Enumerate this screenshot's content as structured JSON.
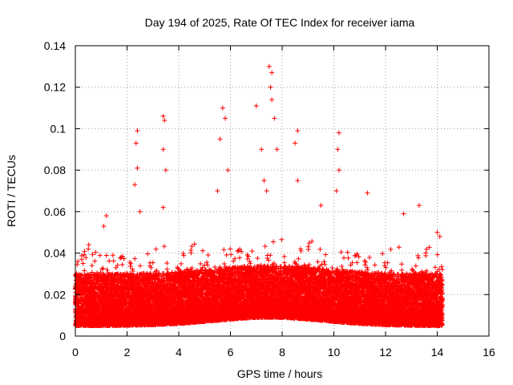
{
  "chart_data": {
    "type": "scatter",
    "title": "Day 194 of 2025, Rate Of TEC Index for receiver iama",
    "xlabel": "GPS time / hours",
    "ylabel": "ROTI / TECUs",
    "xlim": [
      0,
      16
    ],
    "ylim": [
      0,
      0.14
    ],
    "x_ticks": [
      0,
      2,
      4,
      6,
      8,
      10,
      12,
      14,
      16
    ],
    "x_tick_labels": [
      "0",
      "2",
      "4",
      "6",
      "8",
      "10",
      "12",
      "14",
      "16"
    ],
    "y_ticks": [
      0,
      0.02,
      0.04,
      0.06,
      0.08,
      0.1,
      0.12,
      0.14
    ],
    "y_tick_labels": [
      "0",
      "0.02",
      "0.04",
      "0.06",
      "0.08",
      "0.1",
      "0.12",
      "0.14"
    ],
    "grid": true,
    "marker": "+",
    "color": "#ff0000",
    "series": [
      {
        "name": "ROTI",
        "x_range": [
          0,
          14.2
        ],
        "typical_range": [
          0.005,
          0.03
        ],
        "points": [
          [
            0.1,
            0.036
          ],
          [
            0.3,
            0.035
          ],
          [
            0.5,
            0.042
          ],
          [
            1.1,
            0.053
          ],
          [
            1.2,
            0.058
          ],
          [
            2.4,
            0.099
          ],
          [
            2.35,
            0.093
          ],
          [
            2.3,
            0.073
          ],
          [
            2.4,
            0.081
          ],
          [
            2.5,
            0.06
          ],
          [
            3.4,
            0.106
          ],
          [
            3.45,
            0.104
          ],
          [
            3.4,
            0.09
          ],
          [
            3.5,
            0.08
          ],
          [
            3.4,
            0.062
          ],
          [
            5.7,
            0.11
          ],
          [
            5.8,
            0.105
          ],
          [
            5.6,
            0.095
          ],
          [
            5.5,
            0.07
          ],
          [
            5.9,
            0.08
          ],
          [
            7.0,
            0.111
          ],
          [
            7.2,
            0.09
          ],
          [
            7.3,
            0.075
          ],
          [
            7.5,
            0.13
          ],
          [
            7.6,
            0.127
          ],
          [
            7.55,
            0.12
          ],
          [
            7.6,
            0.114
          ],
          [
            7.7,
            0.105
          ],
          [
            7.8,
            0.09
          ],
          [
            7.4,
            0.07
          ],
          [
            8.6,
            0.099
          ],
          [
            8.5,
            0.093
          ],
          [
            8.6,
            0.075
          ],
          [
            9.5,
            0.063
          ],
          [
            10.2,
            0.098
          ],
          [
            10.15,
            0.09
          ],
          [
            10.2,
            0.08
          ],
          [
            10.1,
            0.07
          ],
          [
            11.3,
            0.069
          ],
          [
            12.7,
            0.059
          ],
          [
            13.3,
            0.063
          ],
          [
            14.0,
            0.05
          ],
          [
            14.1,
            0.048
          ]
        ]
      }
    ]
  }
}
